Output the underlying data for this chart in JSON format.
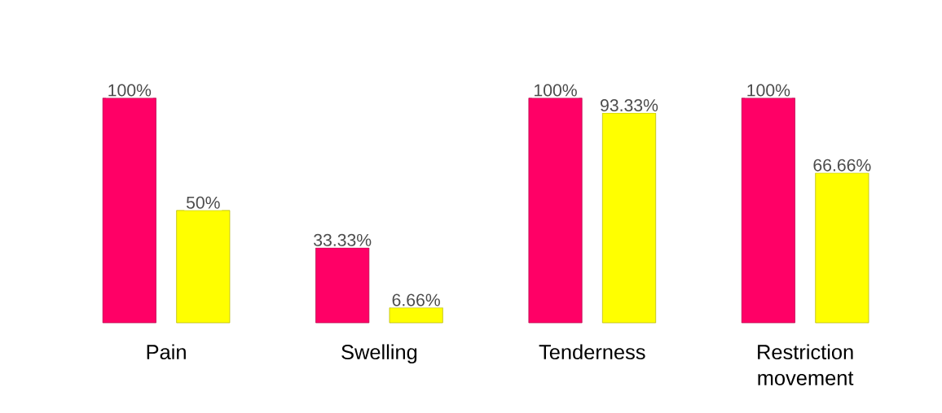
{
  "chart_data": {
    "type": "bar",
    "categories": [
      "Pain",
      "Swelling",
      "Tenderness",
      "Restriction movement"
    ],
    "series": [
      {
        "color": "#ff0066",
        "values": [
          100,
          33.33,
          100,
          100
        ],
        "value_labels": [
          "100%",
          "33.33%",
          "100%",
          "100%"
        ]
      },
      {
        "color": "#ffff00",
        "values": [
          50,
          6.66,
          93.33,
          66.66
        ],
        "value_labels": [
          "50%",
          "6.66%",
          "93.33%",
          "66.66%"
        ]
      }
    ],
    "grid": false
  }
}
